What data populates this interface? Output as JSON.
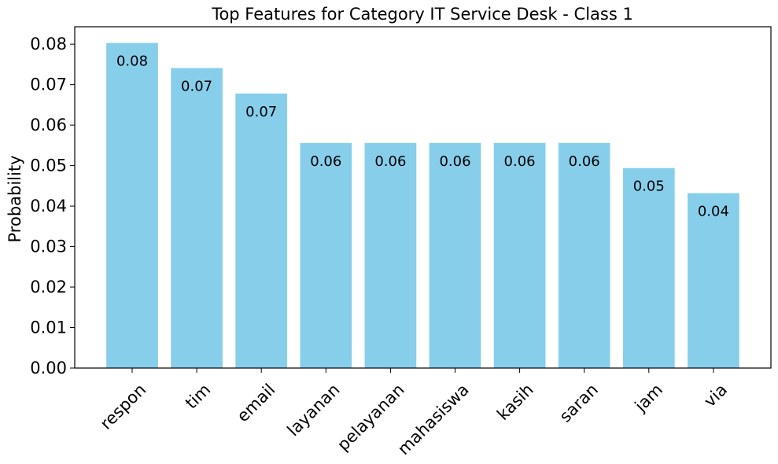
{
  "chart_data": {
    "type": "bar",
    "title": "Top Features for Category IT Service Desk - Class 1",
    "xlabel": "",
    "ylabel": "Probability",
    "categories": [
      "respon",
      "tim",
      "email",
      "layanan",
      "pelayanan",
      "mahasiswa",
      "kasih",
      "saran",
      "jam",
      "via"
    ],
    "values": [
      0.0803,
      0.0741,
      0.0678,
      0.0556,
      0.0556,
      0.0556,
      0.0556,
      0.0556,
      0.0494,
      0.0432
    ],
    "value_labels": [
      "0.08",
      "0.07",
      "0.07",
      "0.06",
      "0.06",
      "0.06",
      "0.06",
      "0.06",
      "0.05",
      "0.04"
    ],
    "ylim": [
      0,
      0.0843
    ],
    "yticks": [
      0.0,
      0.01,
      0.02,
      0.03,
      0.04,
      0.05,
      0.06,
      0.07,
      0.08
    ],
    "ytick_labels": [
      "0.00",
      "0.01",
      "0.02",
      "0.03",
      "0.04",
      "0.05",
      "0.06",
      "0.07",
      "0.08"
    ],
    "bar_color": "#87ceeb",
    "grid": false,
    "legend": "none"
  }
}
